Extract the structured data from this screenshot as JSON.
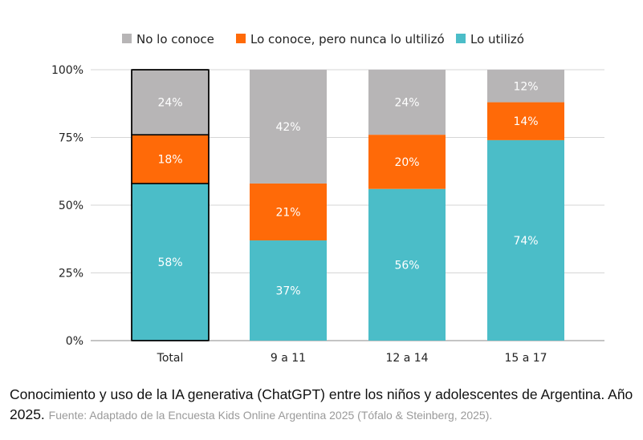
{
  "chart_data": {
    "type": "bar",
    "stacked": true,
    "normalized": true,
    "categories": [
      "Total",
      "9 a 11",
      "12 a 14",
      "15 a 17"
    ],
    "series": [
      {
        "name": "Lo utilizó",
        "color": "#4BBDC8",
        "values": [
          58,
          37,
          56,
          74
        ],
        "labels": [
          "58%",
          "37%",
          "56%",
          "74%"
        ]
      },
      {
        "name": "Lo conoce, pero nunca lo ultilizó",
        "color": "#FF6A08",
        "values": [
          18,
          21,
          20,
          14
        ],
        "labels": [
          "18%",
          "21%",
          "20%",
          "14%"
        ]
      },
      {
        "name": "No lo conoce",
        "color": "#B7B5B6",
        "values": [
          24,
          42,
          24,
          12
        ],
        "labels": [
          "24%",
          "42%",
          "24%",
          "12%"
        ]
      }
    ],
    "legend": [
      "No lo conoce",
      "Lo conoce, pero nunca lo ultilizó",
      "Lo utilizó"
    ],
    "legend_position": "top-center",
    "yticks": [
      0,
      25,
      50,
      75,
      100
    ],
    "ytick_labels": [
      "0%",
      "25%",
      "50%",
      "75%",
      "100%"
    ],
    "ylim": [
      0,
      100
    ],
    "grid": true,
    "highlighted_category": "Total"
  },
  "caption": {
    "title": "Conocimiento y uso de la IA generativa (ChatGPT) entre los niños y adolescentes de Argentina. Año 2025.",
    "source": "Fuente: Adaptado de la Encuesta Kids Online Argentina 2025 (Tófalo & Steinberg, 2025)."
  }
}
